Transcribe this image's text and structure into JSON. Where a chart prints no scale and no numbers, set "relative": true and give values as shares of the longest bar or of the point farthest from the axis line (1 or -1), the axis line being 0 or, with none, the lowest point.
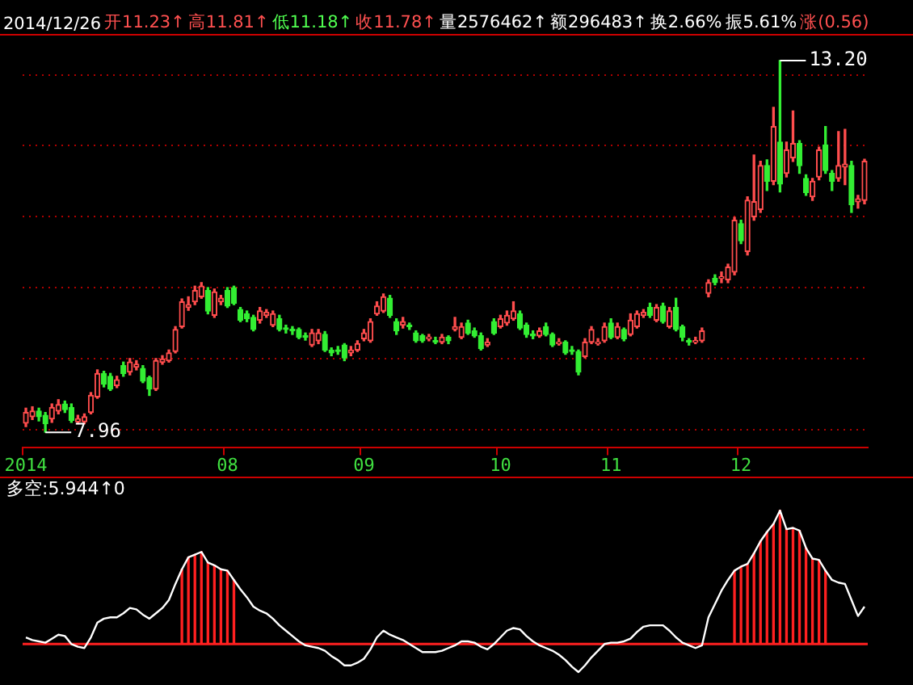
{
  "chart_data": [
    {
      "type": "candlestick",
      "annotations": [
        "2014/12/26",
        "开11.23↑",
        "高11.81↑",
        "低11.18↑",
        "收11.78↑",
        "量2576462↑",
        "额296483↑",
        "换2.66%",
        "振5.61%",
        "涨(0.56)",
        "7.96",
        "13.20"
      ],
      "categories": [
        "2014",
        null,
        null,
        null,
        null,
        null,
        null,
        null,
        null,
        null,
        null,
        null,
        null,
        null,
        null,
        null,
        null,
        null,
        null,
        null,
        null,
        null,
        null,
        null,
        null,
        null,
        null,
        null,
        null,
        null,
        null,
        "08",
        null,
        null,
        null,
        null,
        null,
        null,
        null,
        null,
        null,
        null,
        null,
        null,
        null,
        null,
        null,
        null,
        null,
        null,
        null,
        null,
        "09",
        null,
        null,
        null,
        null,
        null,
        null,
        null,
        null,
        null,
        null,
        null,
        null,
        null,
        null,
        null,
        null,
        null,
        null,
        null,
        null,
        "10",
        null,
        null,
        null,
        null,
        null,
        null,
        null,
        null,
        null,
        null,
        null,
        null,
        null,
        null,
        null,
        null,
        "11",
        null,
        null,
        null,
        null,
        null,
        null,
        null,
        null,
        null,
        null,
        null,
        null,
        null,
        null,
        null,
        null,
        null,
        null,
        null,
        "12",
        null,
        null,
        null,
        null,
        null,
        null,
        null,
        null,
        null,
        null,
        null,
        null,
        null,
        null,
        null,
        null,
        null,
        null,
        null
      ],
      "ohlc": [
        [
          8.09,
          8.3,
          8.04,
          8.24
        ],
        [
          8.18,
          8.32,
          8.14,
          8.26
        ],
        [
          8.26,
          8.3,
          8.12,
          8.18
        ],
        [
          8.2,
          8.24,
          7.96,
          8.08
        ],
        [
          8.15,
          8.36,
          8.1,
          8.31
        ],
        [
          8.26,
          8.42,
          8.22,
          8.35
        ],
        [
          8.36,
          8.4,
          8.24,
          8.28
        ],
        [
          8.31,
          8.36,
          8.1,
          8.13
        ],
        [
          8.11,
          8.2,
          8.08,
          8.15
        ],
        [
          8.11,
          8.22,
          8.08,
          8.18
        ],
        [
          8.24,
          8.52,
          8.22,
          8.48
        ],
        [
          8.46,
          8.84,
          8.44,
          8.79
        ],
        [
          8.79,
          8.82,
          8.6,
          8.64
        ],
        [
          8.75,
          8.79,
          8.55,
          8.57
        ],
        [
          8.62,
          8.75,
          8.59,
          8.7
        ],
        [
          8.9,
          8.95,
          8.75,
          8.79
        ],
        [
          8.81,
          9.0,
          8.77,
          8.95
        ],
        [
          8.88,
          8.97,
          8.84,
          8.92
        ],
        [
          8.86,
          8.9,
          8.66,
          8.68
        ],
        [
          8.73,
          8.75,
          8.48,
          8.57
        ],
        [
          8.57,
          9.0,
          8.55,
          8.97
        ],
        [
          8.95,
          9.04,
          8.92,
          8.99
        ],
        [
          8.97,
          9.12,
          8.95,
          9.08
        ],
        [
          9.1,
          9.45,
          9.08,
          9.41
        ],
        [
          9.45,
          9.84,
          9.43,
          9.8
        ],
        [
          9.72,
          9.87,
          9.68,
          9.76
        ],
        [
          9.8,
          10.02,
          9.76,
          9.96
        ],
        [
          9.87,
          10.07,
          9.85,
          10.02
        ],
        [
          9.96,
          10.0,
          9.63,
          9.67
        ],
        [
          9.61,
          9.98,
          9.58,
          9.94
        ],
        [
          9.8,
          9.89,
          9.76,
          9.85
        ],
        [
          9.96,
          10.0,
          9.72,
          9.74
        ],
        [
          10.0,
          10.02,
          9.76,
          9.78
        ],
        [
          9.69,
          9.72,
          9.52,
          9.54
        ],
        [
          9.63,
          9.67,
          9.52,
          9.56
        ],
        [
          9.58,
          9.61,
          9.39,
          9.41
        ],
        [
          9.54,
          9.72,
          9.5,
          9.67
        ],
        [
          9.61,
          9.69,
          9.58,
          9.65
        ],
        [
          9.47,
          9.67,
          9.45,
          9.63
        ],
        [
          9.56,
          9.61,
          9.39,
          9.41
        ],
        [
          9.43,
          9.47,
          9.36,
          9.41
        ],
        [
          9.41,
          9.45,
          9.34,
          9.39
        ],
        [
          9.41,
          9.43,
          9.28,
          9.3
        ],
        [
          9.32,
          9.36,
          9.26,
          9.3
        ],
        [
          9.19,
          9.41,
          9.17,
          9.36
        ],
        [
          9.25,
          9.41,
          9.21,
          9.36
        ],
        [
          9.34,
          9.38,
          9.1,
          9.12
        ],
        [
          9.12,
          9.15,
          9.04,
          9.08
        ],
        [
          9.12,
          9.17,
          9.06,
          9.1
        ],
        [
          9.19,
          9.21,
          8.97,
          9.01
        ],
        [
          9.08,
          9.17,
          9.04,
          9.12
        ],
        [
          9.12,
          9.25,
          9.1,
          9.21
        ],
        [
          9.28,
          9.41,
          9.25,
          9.36
        ],
        [
          9.25,
          9.56,
          9.23,
          9.52
        ],
        [
          9.63,
          9.8,
          9.61,
          9.74
        ],
        [
          9.67,
          9.91,
          9.65,
          9.87
        ],
        [
          9.85,
          9.89,
          9.58,
          9.61
        ],
        [
          9.52,
          9.56,
          9.34,
          9.39
        ],
        [
          9.47,
          9.58,
          9.43,
          9.52
        ],
        [
          9.47,
          9.5,
          9.41,
          9.45
        ],
        [
          9.36,
          9.39,
          9.23,
          9.25
        ],
        [
          9.32,
          9.34,
          9.23,
          9.25
        ],
        [
          9.28,
          9.34,
          9.25,
          9.3
        ],
        [
          9.25,
          9.3,
          9.21,
          9.23
        ],
        [
          9.23,
          9.34,
          9.21,
          9.3
        ],
        [
          9.3,
          9.32,
          9.21,
          9.25
        ],
        [
          9.41,
          9.58,
          9.39,
          9.45
        ],
        [
          9.3,
          9.5,
          9.28,
          9.45
        ],
        [
          9.5,
          9.54,
          9.34,
          9.36
        ],
        [
          9.39,
          9.43,
          9.3,
          9.32
        ],
        [
          9.32,
          9.36,
          9.12,
          9.14
        ],
        [
          9.19,
          9.28,
          9.17,
          9.23
        ],
        [
          9.52,
          9.56,
          9.34,
          9.36
        ],
        [
          9.45,
          9.61,
          9.43,
          9.56
        ],
        [
          9.5,
          9.67,
          9.47,
          9.61
        ],
        [
          9.56,
          9.8,
          9.54,
          9.67
        ],
        [
          9.63,
          9.67,
          9.41,
          9.43
        ],
        [
          9.47,
          9.5,
          9.3,
          9.34
        ],
        [
          9.34,
          9.39,
          9.28,
          9.32
        ],
        [
          9.32,
          9.43,
          9.3,
          9.39
        ],
        [
          9.45,
          9.5,
          9.32,
          9.34
        ],
        [
          9.34,
          9.36,
          9.17,
          9.19
        ],
        [
          9.21,
          9.28,
          9.19,
          9.23
        ],
        [
          9.23,
          9.25,
          9.06,
          9.08
        ],
        [
          9.12,
          9.17,
          9.06,
          9.1
        ],
        [
          9.1,
          9.12,
          8.77,
          8.81
        ],
        [
          9.03,
          9.28,
          9.01,
          9.23
        ],
        [
          9.23,
          9.45,
          9.21,
          9.41
        ],
        [
          9.21,
          9.28,
          9.19,
          9.23
        ],
        [
          9.25,
          9.5,
          9.23,
          9.45
        ],
        [
          9.5,
          9.56,
          9.28,
          9.3
        ],
        [
          9.3,
          9.5,
          9.28,
          9.45
        ],
        [
          9.41,
          9.43,
          9.25,
          9.28
        ],
        [
          9.34,
          9.63,
          9.32,
          9.54
        ],
        [
          9.45,
          9.67,
          9.43,
          9.63
        ],
        [
          9.61,
          9.69,
          9.58,
          9.65
        ],
        [
          9.72,
          9.78,
          9.58,
          9.61
        ],
        [
          9.54,
          9.76,
          9.52,
          9.72
        ],
        [
          9.74,
          9.78,
          9.5,
          9.52
        ],
        [
          9.45,
          9.72,
          9.43,
          9.67
        ],
        [
          9.72,
          9.85,
          9.39,
          9.41
        ],
        [
          9.45,
          9.47,
          9.25,
          9.3
        ],
        [
          9.25,
          9.28,
          9.19,
          9.23
        ],
        [
          9.23,
          9.3,
          9.21,
          9.25
        ],
        [
          9.25,
          9.43,
          9.23,
          9.39
        ],
        [
          9.92,
          10.11,
          9.87,
          10.07
        ],
        [
          10.13,
          10.18,
          10.04,
          10.07
        ],
        [
          10.13,
          10.22,
          10.07,
          10.15
        ],
        [
          10.11,
          10.33,
          10.07,
          10.29
        ],
        [
          10.22,
          10.99,
          10.18,
          10.95
        ],
        [
          10.9,
          10.95,
          10.62,
          10.66
        ],
        [
          10.51,
          11.28,
          10.46,
          11.23
        ],
        [
          11.0,
          11.87,
          10.95,
          11.21
        ],
        [
          11.1,
          11.78,
          11.06,
          11.72
        ],
        [
          11.72,
          11.8,
          11.37,
          11.5
        ],
        [
          11.5,
          12.54,
          11.45,
          12.27
        ],
        [
          12.05,
          13.2,
          11.35,
          11.46
        ],
        [
          11.61,
          12.05,
          11.56,
          11.94
        ],
        [
          11.83,
          12.49,
          11.78,
          12.03
        ],
        [
          12.03,
          12.07,
          11.61,
          11.72
        ],
        [
          11.54,
          11.59,
          11.3,
          11.34
        ],
        [
          11.28,
          11.54,
          11.23,
          11.5
        ],
        [
          11.56,
          11.98,
          11.52,
          11.94
        ],
        [
          12.01,
          12.27,
          11.61,
          11.65
        ],
        [
          11.61,
          11.65,
          11.37,
          11.5
        ],
        [
          11.54,
          12.2,
          11.5,
          11.72
        ],
        [
          11.7,
          12.23,
          11.45,
          11.74
        ],
        [
          11.72,
          11.78,
          11.06,
          11.17
        ],
        [
          11.21,
          11.3,
          11.12,
          11.25
        ],
        [
          11.23,
          11.81,
          11.18,
          11.78
        ]
      ],
      "colors": [
        "#ff4d4d",
        "#ff4d4d",
        "#33ee33",
        "#33ee33",
        "#ff4d4d",
        "#ff4d4d",
        "#33ee33",
        "#33ee33",
        "#ff4d4d",
        "#ff4d4d",
        "#ff4d4d",
        "#ff4d4d",
        "#33ee33",
        "#33ee33",
        "#ff4d4d",
        "#33ee33",
        "#ff4d4d",
        "#ff4d4d",
        "#33ee33",
        "#33ee33",
        "#ff4d4d",
        "#ff4d4d",
        "#ff4d4d",
        "#ff4d4d",
        "#ff4d4d",
        "#ff4d4d",
        "#ff4d4d",
        "#ff4d4d",
        "#33ee33",
        "#ff4d4d",
        "#ff4d4d",
        "#33ee33",
        "#33ee33",
        "#33ee33",
        "#33ee33",
        "#33ee33",
        "#ff4d4d",
        "#ff4d4d",
        "#ff4d4d",
        "#33ee33",
        "#33ee33",
        "#33ee33",
        "#33ee33",
        "#33ee33",
        "#ff4d4d",
        "#ff4d4d",
        "#33ee33",
        "#33ee33",
        "#33ee33",
        "#33ee33",
        "#ff4d4d",
        "#ff4d4d",
        "#ff4d4d",
        "#ff4d4d",
        "#ff4d4d",
        "#ff4d4d",
        "#33ee33",
        "#33ee33",
        "#ff4d4d",
        "#33ee33",
        "#33ee33",
        "#33ee33",
        "#ff4d4d",
        "#33ee33",
        "#ff4d4d",
        "#33ee33",
        "#ff4d4d",
        "#ff4d4d",
        "#33ee33",
        "#33ee33",
        "#33ee33",
        "#ff4d4d",
        "#33ee33",
        "#ff4d4d",
        "#ff4d4d",
        "#ff4d4d",
        "#33ee33",
        "#33ee33",
        "#33ee33",
        "#ff4d4d",
        "#33ee33",
        "#33ee33",
        "#ff4d4d",
        "#33ee33",
        "#33ee33",
        "#33ee33",
        "#ff4d4d",
        "#ff4d4d",
        "#ff4d4d",
        "#ff4d4d",
        "#33ee33",
        "#ff4d4d",
        "#33ee33",
        "#ff4d4d",
        "#ff4d4d",
        "#ff4d4d",
        "#33ee33",
        "#ff4d4d",
        "#33ee33",
        "#ff4d4d",
        "#33ee33",
        "#33ee33",
        "#33ee33",
        "#ff4d4d",
        "#ff4d4d",
        "#ff4d4d",
        "#33ee33",
        "#ff4d4d",
        "#ff4d4d",
        "#ff4d4d",
        "#33ee33",
        "#ff4d4d",
        "#ff4d4d",
        "#ff4d4d",
        "#33ee33",
        "#ff4d4d",
        "#33ee33",
        "#ff4d4d",
        "#ff4d4d",
        "#33ee33",
        "#33ee33",
        "#ff4d4d",
        "#ff4d4d",
        "#33ee33",
        "#33ee33",
        "#ff4d4d",
        "#ff4d4d",
        "#33ee33",
        "#ff4d4d",
        "#ff4d4d"
      ],
      "yticks": [
        {
          "value": 8,
          "label": null
        },
        {
          "value": 9,
          "label": null
        },
        {
          "value": 10,
          "label": null
        },
        {
          "value": 11,
          "label": null
        },
        {
          "value": 12,
          "label": null
        },
        {
          "value": 13,
          "label": null
        }
      ],
      "grid": "y",
      "tick_labels": "x"
    },
    {
      "type": "line",
      "title": "多空:5.944↑0",
      "relative": true,
      "tick_labels": false,
      "categories": [
        null,
        null,
        null,
        null,
        null,
        null,
        null,
        null,
        null,
        null,
        null,
        null,
        null,
        null,
        null,
        null,
        null,
        null,
        null,
        null,
        null,
        null,
        null,
        null,
        null,
        null,
        null,
        null,
        null,
        null,
        null,
        null,
        null,
        null,
        null,
        null,
        null,
        null,
        null,
        null,
        null,
        null,
        null,
        null,
        null,
        null,
        null,
        null,
        null,
        null,
        null,
        null,
        null,
        null,
        null,
        null,
        null,
        null,
        null,
        null,
        null,
        null,
        null,
        null,
        null,
        null,
        null,
        null,
        null,
        null,
        null,
        null,
        null,
        null,
        null,
        null,
        null,
        null,
        null,
        null,
        null,
        null,
        null,
        null,
        null,
        null,
        null,
        null,
        null,
        null,
        null,
        null,
        null,
        null,
        null,
        null,
        null,
        null,
        null,
        null,
        null,
        null,
        null,
        null,
        null,
        null,
        null,
        null,
        null,
        null,
        null,
        null,
        null,
        null,
        null,
        null,
        null,
        null,
        null,
        null,
        null,
        null,
        null,
        null,
        null,
        null,
        null,
        null,
        null,
        null
      ],
      "series": [
        {
          "type": "line",
          "color": "#ffffff",
          "values": [
            0.05,
            0.03,
            0.02,
            0.01,
            0.04,
            0.07,
            0.06,
            0.0,
            -0.02,
            -0.03,
            0.05,
            0.16,
            0.19,
            0.2,
            0.2,
            0.23,
            0.27,
            0.26,
            0.22,
            0.19,
            0.23,
            0.27,
            0.33,
            0.45,
            0.56,
            0.65,
            0.67,
            0.69,
            0.61,
            0.59,
            0.56,
            0.55,
            0.48,
            0.41,
            0.35,
            0.28,
            0.25,
            0.23,
            0.19,
            0.14,
            0.1,
            0.06,
            0.02,
            -0.01,
            -0.02,
            -0.03,
            -0.05,
            -0.09,
            -0.12,
            -0.16,
            -0.16,
            -0.14,
            -0.11,
            -0.04,
            0.05,
            0.1,
            0.07,
            0.05,
            0.03,
            0.0,
            -0.03,
            -0.06,
            -0.06,
            -0.06,
            -0.05,
            -0.03,
            -0.01,
            0.02,
            0.02,
            0.01,
            -0.02,
            -0.04,
            0.0,
            0.05,
            0.1,
            0.12,
            0.11,
            0.06,
            0.02,
            -0.01,
            -0.03,
            -0.05,
            -0.08,
            -0.12,
            -0.17,
            -0.21,
            -0.16,
            -0.1,
            -0.05,
            0.0,
            0.01,
            0.01,
            0.02,
            0.04,
            0.09,
            0.13,
            0.14,
            0.14,
            0.14,
            0.1,
            0.05,
            0.01,
            -0.01,
            -0.03,
            -0.01,
            0.2,
            0.3,
            0.4,
            0.48,
            0.55,
            0.58,
            0.6,
            0.68,
            0.77,
            0.84,
            0.9,
            1.0,
            0.86,
            0.87,
            0.85,
            0.72,
            0.64,
            0.63,
            0.55,
            0.48,
            0.46,
            0.45,
            0.33,
            0.21,
            0.28
          ]
        },
        {
          "type": "bar",
          "color": "#ff2020",
          "values": [
            null,
            null,
            null,
            null,
            null,
            null,
            null,
            null,
            null,
            null,
            null,
            null,
            null,
            null,
            null,
            null,
            null,
            null,
            null,
            null,
            null,
            null,
            null,
            null,
            0.56,
            0.65,
            0.67,
            0.69,
            0.61,
            0.59,
            0.56,
            0.55,
            0.48,
            null,
            null,
            null,
            null,
            null,
            null,
            null,
            null,
            null,
            null,
            null,
            null,
            null,
            null,
            null,
            null,
            null,
            null,
            null,
            null,
            null,
            null,
            null,
            null,
            null,
            null,
            null,
            null,
            null,
            null,
            null,
            null,
            null,
            null,
            null,
            null,
            null,
            null,
            null,
            null,
            null,
            null,
            null,
            null,
            null,
            null,
            null,
            null,
            null,
            null,
            null,
            null,
            null,
            null,
            null,
            null,
            null,
            null,
            null,
            null,
            null,
            null,
            null,
            null,
            null,
            null,
            null,
            null,
            null,
            null,
            null,
            null,
            null,
            null,
            null,
            null,
            0.55,
            0.58,
            0.6,
            0.68,
            0.77,
            0.84,
            0.9,
            1.0,
            0.86,
            0.87,
            0.85,
            0.72,
            0.64,
            0.63,
            0.55,
            null,
            null,
            null,
            null,
            null,
            null
          ]
        }
      ],
      "ref_lines": [
        {
          "axis": "y",
          "value": 0,
          "color": "#ff2020"
        }
      ]
    }
  ]
}
